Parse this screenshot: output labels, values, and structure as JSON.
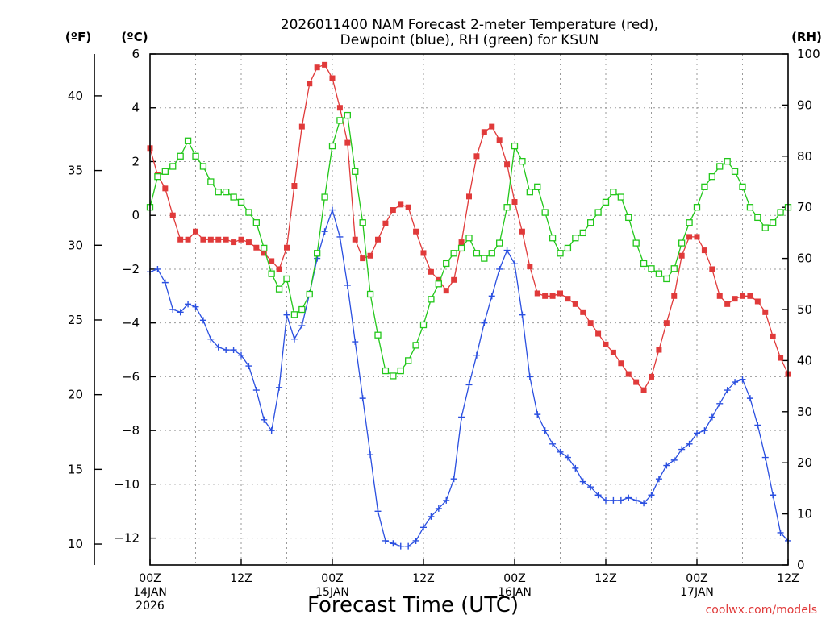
{
  "chart_data": {
    "type": "line",
    "title": "2026011400 NAM Forecast 2-meter Temperature (red),",
    "subtitle": "Dewpoint (blue), RH (green) for KSUN",
    "xlabel": "Forecast Time (UTC)",
    "credit": "coolwx.com/models",
    "units": {
      "fahrenheit": "(ºF)",
      "celsius": "(ºC)",
      "rh": "(RH)"
    },
    "x_hours_range": [
      0,
      84
    ],
    "x_ticks": [
      {
        "h": 0,
        "lines": [
          "00Z",
          "14JAN",
          "2026"
        ]
      },
      {
        "h": 12,
        "lines": [
          "12Z"
        ]
      },
      {
        "h": 24,
        "lines": [
          "00Z",
          "15JAN"
        ]
      },
      {
        "h": 36,
        "lines": [
          "12Z"
        ]
      },
      {
        "h": 48,
        "lines": [
          "00Z",
          "16JAN"
        ]
      },
      {
        "h": 60,
        "lines": [
          "12Z"
        ]
      },
      {
        "h": 72,
        "lines": [
          "00Z",
          "17JAN"
        ]
      },
      {
        "h": 84,
        "lines": [
          "12Z"
        ]
      }
    ],
    "y_celsius": {
      "range": [
        -13,
        6
      ],
      "ticks": [
        6,
        4,
        2,
        0,
        -2,
        -4,
        -6,
        -8,
        -10,
        -12
      ],
      "tick_labels": [
        "6",
        "4",
        "2",
        "0",
        "−2",
        "−4",
        "−6",
        "−8",
        "−10",
        "−12"
      ]
    },
    "y_fahrenheit": {
      "ticks": [
        40,
        35,
        30,
        25,
        20,
        15,
        10
      ]
    },
    "y_rh": {
      "range": [
        0,
        100
      ],
      "ticks": [
        0,
        10,
        20,
        30,
        40,
        50,
        60,
        70,
        80,
        90,
        100
      ]
    },
    "grid": true,
    "series": [
      {
        "color": "#e03a3a",
        "marker": "filled-square",
        "axis": "celsius",
        "hours": [
          0,
          1,
          2,
          3,
          4,
          5,
          6,
          7,
          8,
          9,
          10,
          11,
          12,
          13,
          14,
          15,
          16,
          17,
          18,
          19,
          20,
          21,
          22,
          23,
          24,
          25,
          26,
          27,
          28,
          29,
          30,
          31,
          32,
          33,
          34,
          35,
          36,
          37,
          38,
          39,
          40,
          41,
          42,
          43,
          44,
          45,
          46,
          47,
          48,
          49,
          50,
          51,
          52,
          53,
          54,
          55,
          56,
          57,
          58,
          59,
          60,
          61,
          62,
          63,
          64,
          65,
          66,
          67,
          68,
          69,
          70,
          71,
          72,
          73,
          74,
          75,
          76,
          77,
          78,
          79,
          80,
          81,
          82,
          83,
          84
        ],
        "values": [
          2.5,
          1.5,
          1.0,
          0.0,
          -0.9,
          -0.9,
          -0.6,
          -0.9,
          -0.9,
          -0.9,
          -0.9,
          -1.0,
          -0.9,
          -1.0,
          -1.2,
          -1.4,
          -1.7,
          -2.0,
          -1.2,
          1.1,
          3.3,
          4.9,
          5.5,
          5.6,
          5.1,
          4.0,
          2.7,
          -0.9,
          -1.6,
          -1.5,
          -0.9,
          -0.3,
          0.2,
          0.4,
          0.3,
          -0.6,
          -1.4,
          -2.1,
          -2.4,
          -2.8,
          -2.4,
          -1.0,
          0.7,
          2.2,
          3.1,
          3.3,
          2.8,
          1.9,
          0.5,
          -0.6,
          -1.9,
          -2.9,
          -3.0,
          -3.0,
          -2.9,
          -3.1,
          -3.3,
          -3.6,
          -4.0,
          -4.4,
          -4.8,
          -5.1,
          -5.5,
          -5.9,
          -6.2,
          -6.5,
          -6.0,
          -5.0,
          -4.0,
          -3.0,
          -1.5,
          -0.8,
          -0.8,
          -1.3,
          -2.0,
          -3.0,
          -3.3,
          -3.1,
          -3.0,
          -3.0,
          -3.2,
          -3.6,
          -4.5,
          -5.3,
          -5.9
        ]
      },
      {
        "color": "#2a4fe0",
        "marker": "plus",
        "axis": "celsius",
        "hours": [
          0,
          1,
          2,
          3,
          4,
          5,
          6,
          7,
          8,
          9,
          10,
          11,
          12,
          13,
          14,
          15,
          16,
          17,
          18,
          19,
          20,
          21,
          22,
          23,
          24,
          25,
          26,
          27,
          28,
          29,
          30,
          31,
          32,
          33,
          34,
          35,
          36,
          37,
          38,
          39,
          40,
          41,
          42,
          43,
          44,
          45,
          46,
          47,
          48,
          49,
          50,
          51,
          52,
          53,
          54,
          55,
          56,
          57,
          58,
          59,
          60,
          61,
          62,
          63,
          64,
          65,
          66,
          67,
          68,
          69,
          70,
          71,
          72,
          73,
          74,
          75,
          76,
          77,
          78,
          79,
          80,
          81,
          82,
          83,
          84
        ],
        "values": [
          -2.1,
          -2.0,
          -2.5,
          -3.5,
          -3.6,
          -3.3,
          -3.4,
          -3.9,
          -4.6,
          -4.9,
          -5.0,
          -5.0,
          -5.2,
          -5.6,
          -6.5,
          -7.6,
          -8.0,
          -6.4,
          -3.7,
          -4.6,
          -4.1,
          -2.9,
          -1.6,
          -0.6,
          0.2,
          -0.8,
          -2.6,
          -4.7,
          -6.8,
          -8.9,
          -11.0,
          -12.1,
          -12.2,
          -12.3,
          -12.3,
          -12.1,
          -11.6,
          -11.2,
          -10.9,
          -10.6,
          -9.8,
          -7.5,
          -6.3,
          -5.2,
          -4.0,
          -3.0,
          -2.0,
          -1.3,
          -1.8,
          -3.7,
          -6.0,
          -7.4,
          -8.0,
          -8.5,
          -8.8,
          -9.0,
          -9.4,
          -9.9,
          -10.1,
          -10.4,
          -10.6,
          -10.6,
          -10.6,
          -10.5,
          -10.6,
          -10.7,
          -10.4,
          -9.8,
          -9.3,
          -9.1,
          -8.7,
          -8.5,
          -8.1,
          -8.0,
          -7.5,
          -7.0,
          -6.5,
          -6.2,
          -6.1,
          -6.8,
          -7.8,
          -9.0,
          -10.4,
          -11.8,
          -12.1
        ]
      },
      {
        "color": "#22c71a",
        "marker": "open-square",
        "axis": "rh",
        "hours": [
          0,
          1,
          2,
          3,
          4,
          5,
          6,
          7,
          8,
          9,
          10,
          11,
          12,
          13,
          14,
          15,
          16,
          17,
          18,
          19,
          20,
          21,
          22,
          23,
          24,
          25,
          26,
          27,
          28,
          29,
          30,
          31,
          32,
          33,
          34,
          35,
          36,
          37,
          38,
          39,
          40,
          41,
          42,
          43,
          44,
          45,
          46,
          47,
          48,
          49,
          50,
          51,
          52,
          53,
          54,
          55,
          56,
          57,
          58,
          59,
          60,
          61,
          62,
          63,
          64,
          65,
          66,
          67,
          68,
          69,
          70,
          71,
          72,
          73,
          74,
          75,
          76,
          77,
          78,
          79,
          80,
          81,
          82,
          83,
          84
        ],
        "values": [
          70,
          76,
          77,
          78,
          80,
          83,
          80,
          78,
          75,
          73,
          73,
          72,
          71,
          69,
          67,
          62,
          57,
          54,
          56,
          49,
          50,
          53,
          61,
          72,
          82,
          87,
          88,
          77,
          67,
          53,
          45,
          38,
          37,
          38,
          40,
          43,
          47,
          52,
          55,
          59,
          61,
          62,
          64,
          61,
          60,
          61,
          63,
          70,
          82,
          79,
          73,
          74,
          69,
          64,
          61,
          62,
          64,
          65,
          67,
          69,
          71,
          73,
          72,
          68,
          63,
          59,
          58,
          57,
          56,
          58,
          63,
          67,
          70,
          74,
          76,
          78,
          79,
          77,
          74,
          70,
          68,
          66,
          67,
          69,
          70
        ]
      }
    ]
  }
}
